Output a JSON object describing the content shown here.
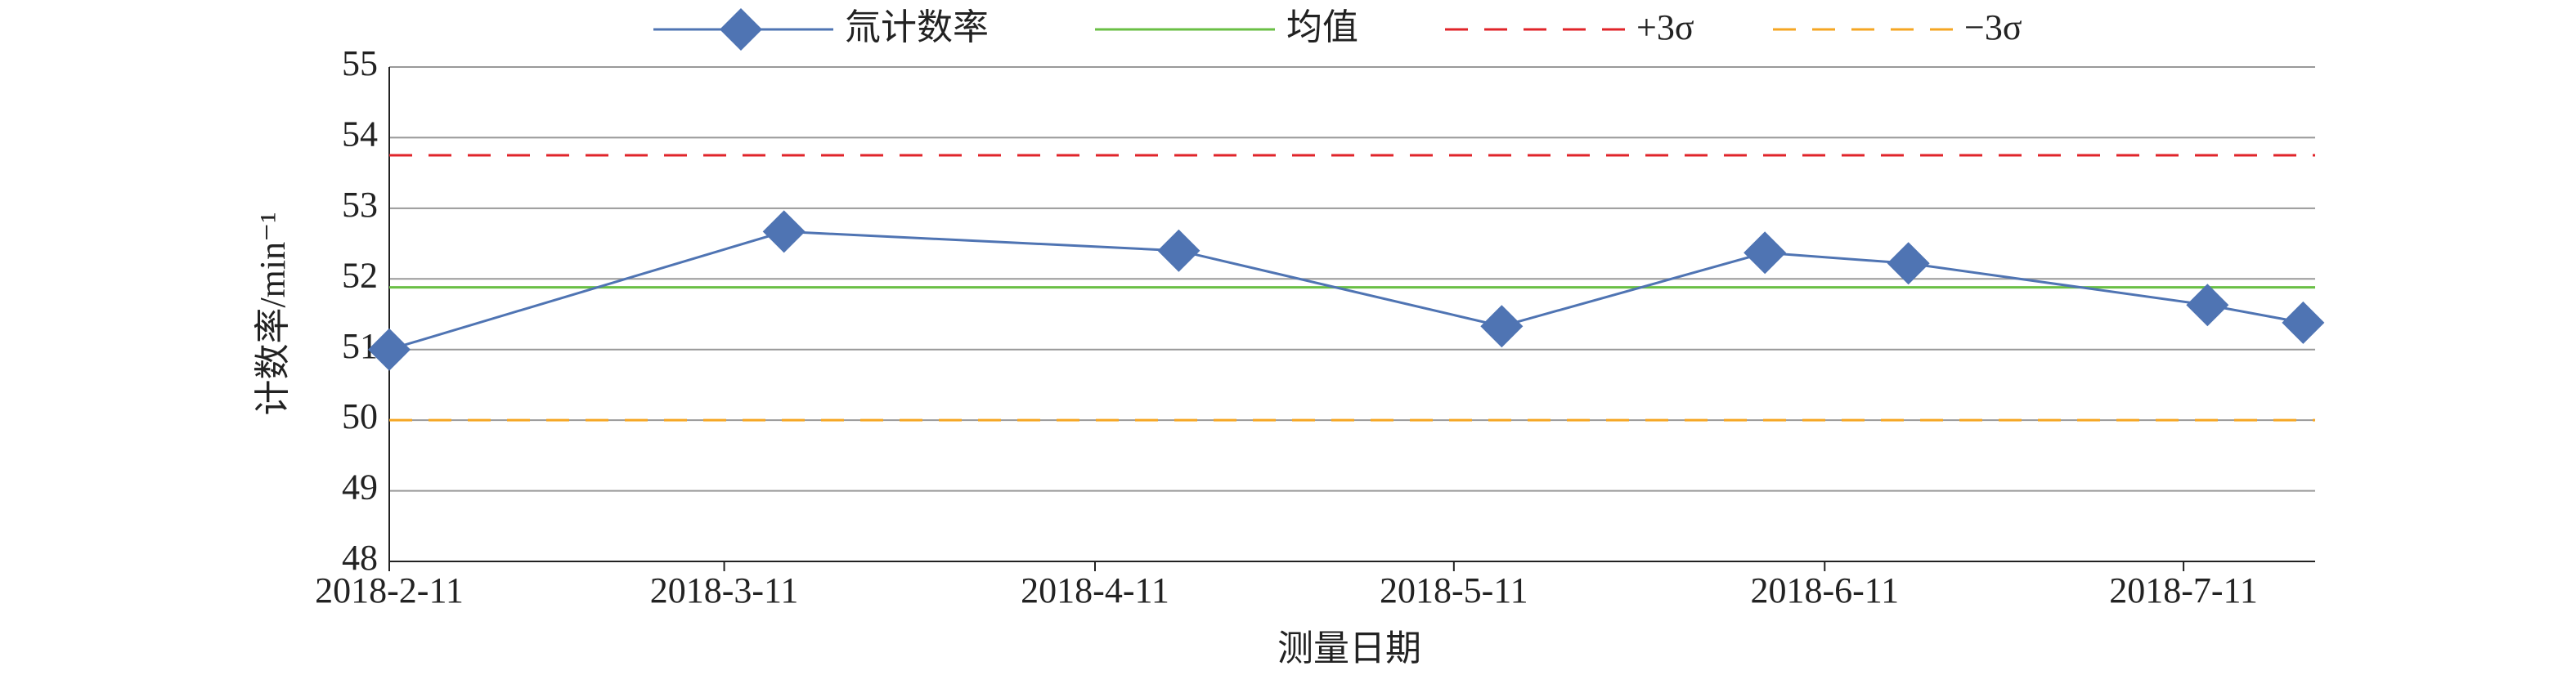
{
  "chart_data": {
    "type": "line",
    "x_label": "测量日期",
    "y_label": "计数率/min⁻¹",
    "x": [
      "2018-2-11",
      "2018-3-16",
      "2018-4-18",
      "2018-5-15",
      "2018-6-6",
      "2018-6-18",
      "2018-7-13",
      "2018-7-21"
    ],
    "series": [
      {
        "name": "氚计数率",
        "color": "#4f74b3",
        "marker": "diamond",
        "values": [
          51.0,
          52.67,
          52.4,
          51.33,
          52.37,
          52.22,
          51.63,
          51.38
        ]
      }
    ],
    "reference_lines": [
      {
        "name": "均值",
        "color": "#6abf45",
        "dash": false,
        "value": 51.88
      },
      {
        "name": "+3σ",
        "color": "#e0242a",
        "dash": true,
        "value": 53.75
      },
      {
        "name": "−3σ",
        "color": "#f5a623",
        "dash": true,
        "value": 50.0
      }
    ],
    "xlim": [
      "2018-2-11",
      "2018-7-22"
    ],
    "xticks": [
      "2018-2-11",
      "2018-3-11",
      "2018-4-11",
      "2018-5-11",
      "2018-6-11",
      "2018-7-11"
    ],
    "ylim": [
      48,
      55
    ],
    "yticks": [
      48,
      49,
      50,
      51,
      52,
      53,
      54,
      55
    ],
    "grid": true,
    "legend": "top"
  }
}
